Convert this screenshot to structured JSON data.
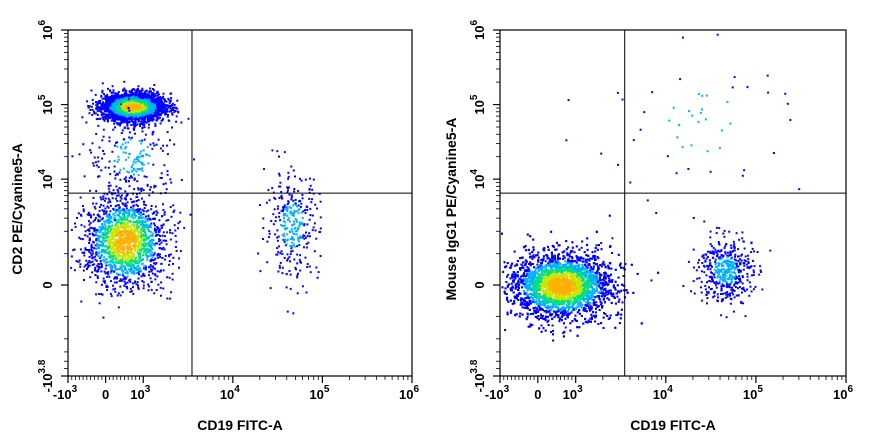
{
  "chart_data": [
    {
      "type": "scatter",
      "subtype": "flow-cytometry-density-dot-plot",
      "xlabel": "CD19 FITC-A",
      "ylabel": "CD2 PE/Cyanine5-A",
      "x_scale": "biexponential",
      "y_scale": "biexponential",
      "xlim": [
        -1000,
        1000000
      ],
      "ylim": [
        -6310,
        1000000
      ],
      "x_ticks": [
        {
          "value": -1000,
          "base": "-10",
          "exp": "3"
        },
        {
          "value": 0,
          "base": "0",
          "exp": ""
        },
        {
          "value": 1000,
          "base": "10",
          "exp": "3"
        },
        {
          "value": 10000,
          "base": "10",
          "exp": "4"
        },
        {
          "value": 100000,
          "base": "10",
          "exp": "5"
        },
        {
          "value": 1000000,
          "base": "10",
          "exp": "6"
        }
      ],
      "y_ticks": [
        {
          "value": -6310,
          "base": "-10",
          "exp": "3.8"
        },
        {
          "value": 0,
          "base": "0",
          "exp": ""
        },
        {
          "value": 10000,
          "base": "10",
          "exp": "4"
        },
        {
          "value": 100000,
          "base": "10",
          "exp": "5"
        },
        {
          "value": 1000000,
          "base": "10",
          "exp": "6"
        }
      ],
      "quadrant_gate": {
        "x": 3500,
        "y": 6500
      },
      "populations": [
        {
          "x_center": 700,
          "y_center": 95000,
          "x_sd_decades": 0.17,
          "y_sd_decades": 0.09,
          "share": 0.58,
          "density": "high"
        },
        {
          "x_center": 500,
          "y_center": 1500,
          "x_sd_decades": 0.22,
          "y_sd_decades": 0.3,
          "share": 0.32,
          "density": "high"
        },
        {
          "x_center": 45000,
          "y_center": 2500,
          "x_sd_decades": 0.15,
          "y_sd_decades": 0.35,
          "share": 0.06,
          "density": "low"
        },
        {
          "x_center": 700,
          "y_center": 20000,
          "x_sd_decades": 0.25,
          "y_sd_decades": 0.3,
          "share": 0.04,
          "density": "low"
        }
      ],
      "color_scale": [
        "#0000ff",
        "#00b0ff",
        "#00e080",
        "#c8e600",
        "#ffb000",
        "#ff3000"
      ],
      "grid": false,
      "legend": "none"
    },
    {
      "type": "scatter",
      "subtype": "flow-cytometry-density-dot-plot",
      "xlabel": "CD19 FITC-A",
      "ylabel": "Mouse IgG1 PE/Cyanine5-A",
      "x_scale": "biexponential",
      "y_scale": "biexponential",
      "xlim": [
        -1000,
        1000000
      ],
      "ylim": [
        -6310,
        1000000
      ],
      "x_ticks": [
        {
          "value": -1000,
          "base": "-10",
          "exp": "3"
        },
        {
          "value": 0,
          "base": "0",
          "exp": ""
        },
        {
          "value": 1000,
          "base": "10",
          "exp": "3"
        },
        {
          "value": 10000,
          "base": "10",
          "exp": "4"
        },
        {
          "value": 100000,
          "base": "10",
          "exp": "5"
        },
        {
          "value": 1000000,
          "base": "10",
          "exp": "6"
        }
      ],
      "y_ticks": [
        {
          "value": -6310,
          "base": "-10",
          "exp": "3.8"
        },
        {
          "value": 0,
          "base": "0",
          "exp": ""
        },
        {
          "value": 10000,
          "base": "10",
          "exp": "4"
        },
        {
          "value": 100000,
          "base": "10",
          "exp": "5"
        },
        {
          "value": 1000000,
          "base": "10",
          "exp": "6"
        }
      ],
      "quadrant_gate": {
        "x": 3500,
        "y": 6500
      },
      "populations": [
        {
          "x_center": 600,
          "y_center": 0,
          "x_sd_decades": 0.28,
          "y_sd_decades": 0.22,
          "share": 0.9,
          "density": "high"
        },
        {
          "x_center": 45000,
          "y_center": 500,
          "x_sd_decades": 0.15,
          "y_sd_decades": 0.22,
          "share": 0.09,
          "density": "low"
        },
        {
          "x_center": 20000,
          "y_center": 60000,
          "x_sd_decades": 0.6,
          "y_sd_decades": 0.5,
          "share": 0.01,
          "density": "low"
        }
      ],
      "color_scale": [
        "#0000ff",
        "#00b0ff",
        "#00e080",
        "#c8e600",
        "#ffb000",
        "#ff3000"
      ],
      "grid": false,
      "legend": "none"
    }
  ]
}
